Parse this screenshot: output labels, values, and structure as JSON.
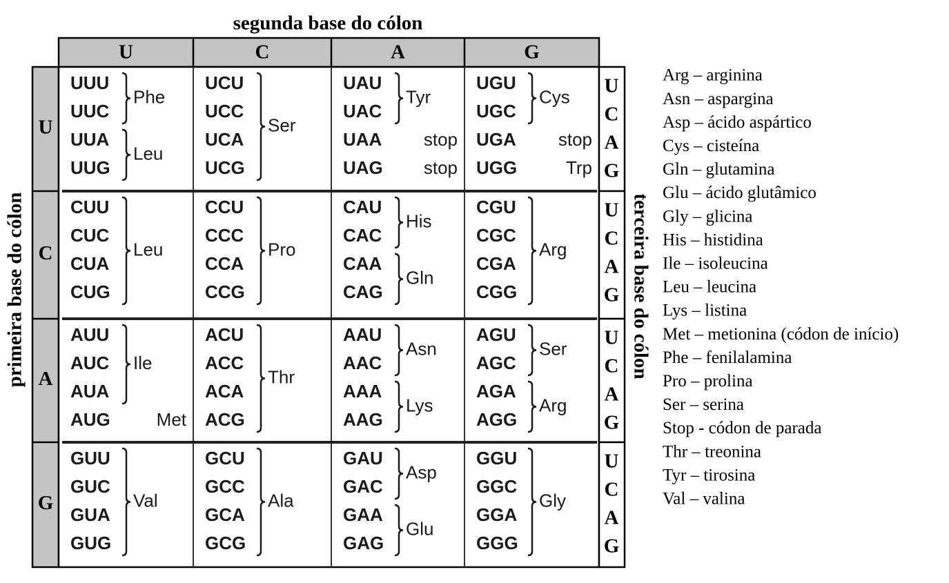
{
  "top_label": "segunda base do cólon",
  "left_label": "primeira base do cólon",
  "right_label": "terceira base do cólon",
  "columns": [
    "U",
    "C",
    "A",
    "G"
  ],
  "third_bases": [
    "U",
    "C",
    "A",
    "G"
  ],
  "rows": [
    {
      "base": "U",
      "cells": [
        [
          {
            "codons": [
              "UUU",
              "UUC"
            ],
            "label": "Phe"
          },
          {
            "codons": [
              "UUA",
              "UUG"
            ],
            "label": "Leu"
          }
        ],
        [
          {
            "codons": [
              "UCU",
              "UCC",
              "UCA",
              "UCG"
            ],
            "label": "Ser"
          }
        ],
        [
          {
            "codons": [
              "UAU",
              "UAC"
            ],
            "label": "Tyr"
          },
          {
            "codons": [
              "UAA"
            ],
            "label": "stop"
          },
          {
            "codons": [
              "UAG"
            ],
            "label": "stop"
          }
        ],
        [
          {
            "codons": [
              "UGU",
              "UGC"
            ],
            "label": "Cys"
          },
          {
            "codons": [
              "UGA"
            ],
            "label": "stop"
          },
          {
            "codons": [
              "UGG"
            ],
            "label": "Trp"
          }
        ]
      ]
    },
    {
      "base": "C",
      "cells": [
        [
          {
            "codons": [
              "CUU",
              "CUC",
              "CUA",
              "CUG"
            ],
            "label": "Leu"
          }
        ],
        [
          {
            "codons": [
              "CCU",
              "CCC",
              "CCA",
              "CCG"
            ],
            "label": "Pro"
          }
        ],
        [
          {
            "codons": [
              "CAU",
              "CAC"
            ],
            "label": "His"
          },
          {
            "codons": [
              "CAA",
              "CAG"
            ],
            "label": "Gln"
          }
        ],
        [
          {
            "codons": [
              "CGU",
              "CGC",
              "CGA",
              "CGG"
            ],
            "label": "Arg"
          }
        ]
      ]
    },
    {
      "base": "A",
      "cells": [
        [
          {
            "codons": [
              "AUU",
              "AUC",
              "AUA"
            ],
            "label": "Ile"
          },
          {
            "codons": [
              "AUG"
            ],
            "label": "Met",
            "color": "#8a8a8a"
          }
        ],
        [
          {
            "codons": [
              "ACU",
              "ACC",
              "ACA",
              "ACG"
            ],
            "label": "Thr"
          }
        ],
        [
          {
            "codons": [
              "AAU",
              "AAC"
            ],
            "label": "Asn"
          },
          {
            "codons": [
              "AAA",
              "AAG"
            ],
            "label": "Lys"
          }
        ],
        [
          {
            "codons": [
              "AGU",
              "AGC"
            ],
            "label": "Ser"
          },
          {
            "codons": [
              "AGA",
              "AGG"
            ],
            "label": "Arg"
          }
        ]
      ]
    },
    {
      "base": "G",
      "cells": [
        [
          {
            "codons": [
              "GUU",
              "GUC",
              "GUA",
              "GUG"
            ],
            "label": "Val"
          }
        ],
        [
          {
            "codons": [
              "GCU",
              "GCC",
              "GCA",
              "GCG"
            ],
            "label": "Ala"
          }
        ],
        [
          {
            "codons": [
              "GAU",
              "GAC"
            ],
            "label": "Asp"
          },
          {
            "codons": [
              "GAA",
              "GAG"
            ],
            "label": "Glu"
          }
        ],
        [
          {
            "codons": [
              "GGU",
              "GGC",
              "GGA",
              "GGG"
            ],
            "label": "Gly"
          }
        ]
      ]
    }
  ],
  "legend": [
    "Arg – arginina",
    "Asn – aspargina",
    "Asp – ácido aspártico",
    "Cys – cisteína",
    "Gln – glutamina",
    "Glu – ácido glutâmico",
    "Gly – glicina",
    "His – histidina",
    "Ile – isoleucina",
    "Leu – leucina",
    "Lys – listina",
    "Met – metionina (códon de início)",
    "Phe – fenilalamina",
    "Pro – prolina",
    "Ser – serina",
    "Stop - códon de parada",
    "Thr – treonina",
    "Tyr – tirosina",
    "Val – valina"
  ]
}
